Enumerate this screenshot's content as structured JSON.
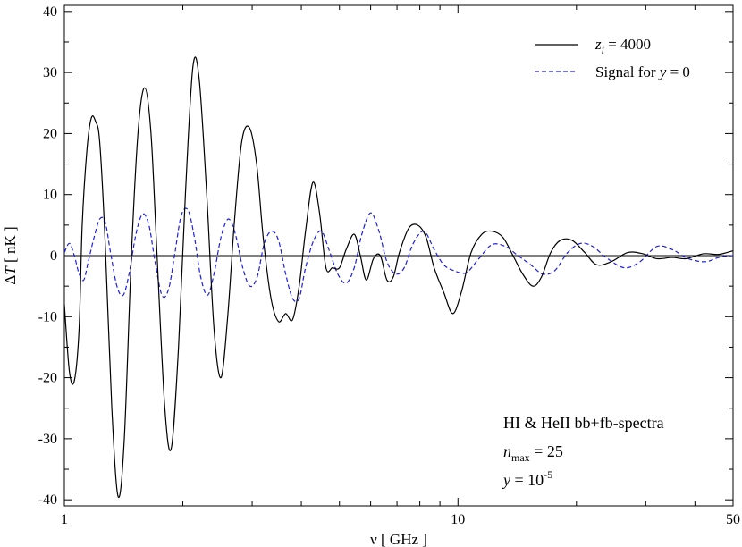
{
  "chart_data": {
    "type": "line",
    "title": "",
    "xlabel": "ν [ GHz ]",
    "ylabel": "ΔT [ nK ]",
    "xscale": "log",
    "xlim": [
      1,
      50
    ],
    "ylim": [
      -41,
      41
    ],
    "x_ticks": [
      1,
      10,
      50
    ],
    "x_tick_labels": [
      "1",
      "10",
      "50"
    ],
    "y_ticks": [
      -40,
      -30,
      -20,
      -10,
      0,
      10,
      20,
      30,
      40
    ],
    "y_tick_labels": [
      "-40",
      "-30",
      "-20",
      "-10",
      "0",
      "10",
      "20",
      "30",
      "40"
    ],
    "grid": false,
    "legend_position": "top-right",
    "series": [
      {
        "name": "z_i = 4000",
        "color": "#000000",
        "style": "solid",
        "x": [
          1.0,
          1.03,
          1.06,
          1.09,
          1.11,
          1.14,
          1.17,
          1.2,
          1.23,
          1.27,
          1.32,
          1.37,
          1.42,
          1.48,
          1.54,
          1.6,
          1.66,
          1.72,
          1.8,
          1.87,
          1.95,
          2.03,
          2.12,
          2.2,
          2.3,
          2.4,
          2.5,
          2.6,
          2.7,
          2.82,
          2.95,
          3.08,
          3.2,
          3.35,
          3.5,
          3.65,
          3.8,
          3.95,
          4.1,
          4.28,
          4.45,
          4.62,
          4.8,
          5.0,
          5.2,
          5.45,
          5.65,
          5.85,
          6.1,
          6.35,
          6.6,
          6.85,
          7.1,
          7.5,
          7.9,
          8.3,
          8.7,
          9.2,
          9.7,
          10.2,
          10.8,
          11.5,
          12.2,
          13.0,
          13.8,
          14.6,
          15.5,
          16.3,
          17.2,
          18.2,
          19.5,
          21.0,
          22.5,
          24.5,
          27.0,
          29.5,
          32.0,
          35.0,
          38.0,
          42.0,
          46.0,
          50.0
        ],
        "y": [
          -8.0,
          -19.0,
          -20.5,
          -12.0,
          5.0,
          17.0,
          22.5,
          22.0,
          18.5,
          2.0,
          -25.0,
          -39.5,
          -30.0,
          0.0,
          20.5,
          27.5,
          20.0,
          0.0,
          -25.0,
          -31.5,
          -15.0,
          10.0,
          30.8,
          29.0,
          10.0,
          -12.0,
          -20.0,
          -10.0,
          5.0,
          18.5,
          21.0,
          15.0,
          3.0,
          -7.0,
          -10.8,
          -9.5,
          -10.5,
          -5.0,
          4.0,
          12.0,
          7.0,
          -2.0,
          -2.0,
          -2.0,
          1.0,
          3.5,
          0.0,
          -4.0,
          -0.5,
          0.0,
          -4.0,
          -3.5,
          0.5,
          4.5,
          5.0,
          3.0,
          -2.0,
          -6.0,
          -9.5,
          -6.0,
          0.5,
          3.5,
          4.0,
          3.0,
          0.0,
          -3.0,
          -5.0,
          -3.5,
          0.5,
          2.5,
          2.5,
          0.5,
          -1.5,
          -1.0,
          0.5,
          0.3,
          -0.5,
          -0.3,
          -0.5,
          0.3,
          0.2,
          0.8
        ]
      },
      {
        "name": "Signal for y = 0",
        "color": "#1f1fe0",
        "style": "dashed",
        "x": [
          1.0,
          1.03,
          1.06,
          1.09,
          1.12,
          1.15,
          1.19,
          1.23,
          1.27,
          1.31,
          1.36,
          1.41,
          1.46,
          1.52,
          1.58,
          1.64,
          1.7,
          1.77,
          1.84,
          1.91,
          1.98,
          2.06,
          2.14,
          2.22,
          2.31,
          2.4,
          2.5,
          2.61,
          2.72,
          2.84,
          2.96,
          3.09,
          3.22,
          3.36,
          3.5,
          3.65,
          3.8,
          3.95,
          4.1,
          4.3,
          4.5,
          4.7,
          4.95,
          5.2,
          5.45,
          5.7,
          6.0,
          6.3,
          6.6,
          6.95,
          7.3,
          7.7,
          8.2,
          8.7,
          9.2,
          9.8,
          10.5,
          11.3,
          12.2,
          13.2,
          14.2,
          15.3,
          16.4,
          17.6,
          19.0,
          20.5,
          22.0,
          24.0,
          26.5,
          29.0,
          32.0,
          35.0,
          38.5,
          42.5,
          46.0,
          50.0
        ],
        "y": [
          0.5,
          2.0,
          0.0,
          -3.0,
          -4.0,
          -1.0,
          3.0,
          6.0,
          5.5,
          0.5,
          -5.0,
          -6.5,
          -3.0,
          3.5,
          6.8,
          5.0,
          -1.0,
          -6.5,
          -5.5,
          0.5,
          6.5,
          7.5,
          3.0,
          -3.5,
          -6.5,
          -3.0,
          3.0,
          6.0,
          3.5,
          -2.0,
          -5.0,
          -3.5,
          2.0,
          4.0,
          2.5,
          -3.0,
          -7.0,
          -7.0,
          -2.0,
          2.5,
          4.0,
          1.0,
          -3.0,
          -4.5,
          -2.0,
          3.5,
          7.0,
          4.0,
          -1.0,
          -3.0,
          -2.0,
          2.0,
          4.0,
          1.0,
          -1.5,
          -2.5,
          -2.8,
          -0.5,
          1.8,
          1.5,
          0.0,
          -1.5,
          -3.0,
          -2.5,
          0.5,
          2.0,
          1.5,
          -0.5,
          -2.0,
          -1.0,
          1.5,
          1.0,
          -0.5,
          -1.0,
          -0.3,
          0.0
        ]
      }
    ],
    "annotations": [
      "HI & HeII bb+fb-spectra",
      "n_max = 25",
      "y = 10^-5"
    ]
  },
  "legend": {
    "entry1": {
      "var": "z",
      "sub": "i",
      "rest": " = 4000"
    },
    "entry2": {
      "pre": "Signal for ",
      "var": "y",
      "rest": " = 0"
    }
  },
  "annotation_box": {
    "line1": "HI & HeII bb+fb-spectra",
    "line2_var": "n",
    "line2_sub": "max",
    "line2_rest": " = 25",
    "line3_var": "y",
    "line3_mid": " = 10",
    "line3_sup": "-5"
  },
  "axes": {
    "x_title_greek": "ν",
    "x_title_rest": " [ GHz ]",
    "y_title_delta": "Δ",
    "y_title_var": "T",
    "y_title_rest": " [ nK ]"
  }
}
